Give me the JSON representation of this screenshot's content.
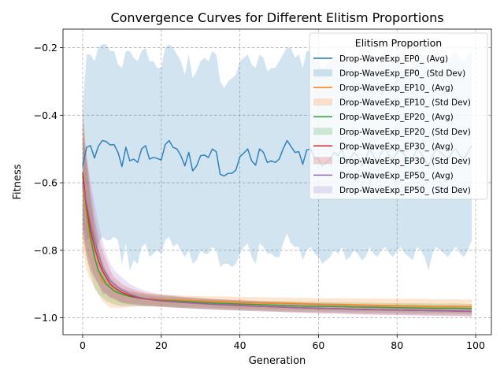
{
  "chart_data": {
    "type": "line",
    "title": "Convergence Curves for Different Elitism Proportions",
    "xlabel": "Generation",
    "ylabel": "Fitness",
    "xlim": [
      -5,
      104
    ],
    "ylim": [
      -1.05,
      -0.145
    ],
    "x_ticks": [
      0,
      20,
      40,
      60,
      80,
      100
    ],
    "y_ticks": [
      -1.0,
      -0.8,
      -0.6,
      -0.4,
      -0.2
    ],
    "grid": true,
    "legend": {
      "title": "Elitism Proportion",
      "placement": "top-right"
    },
    "series": [
      {
        "name": "Drop-WaveExp_EP0_ (Avg)",
        "band_name": "Drop-WaveExp_EP0_ (Std Dev)",
        "color": "#1f77b4",
        "x": [
          0,
          1,
          2,
          3,
          4,
          5,
          6,
          7,
          8,
          9,
          10,
          11,
          12,
          13,
          14,
          15,
          16,
          17,
          18,
          19,
          20,
          21,
          22,
          23,
          24,
          25,
          26,
          27,
          28,
          29,
          30,
          31,
          32,
          33,
          34,
          35,
          36,
          37,
          38,
          39,
          40,
          41,
          42,
          43,
          44,
          45,
          46,
          47,
          48,
          49,
          50,
          51,
          52,
          53,
          54,
          55,
          56,
          57,
          58,
          59,
          60,
          61,
          62,
          63,
          64,
          65,
          66,
          67,
          68,
          69,
          70,
          71,
          72,
          73,
          74,
          75,
          76,
          77,
          78,
          79,
          80,
          81,
          82,
          83,
          84,
          85,
          86,
          87,
          88,
          89,
          90,
          91,
          92,
          93,
          94,
          95,
          96,
          97,
          98,
          99
        ],
        "avg": [
          -0.55,
          -0.495,
          -0.49,
          -0.527,
          -0.492,
          -0.475,
          -0.478,
          -0.488,
          -0.487,
          -0.51,
          -0.552,
          -0.495,
          -0.535,
          -0.53,
          -0.54,
          -0.5,
          -0.49,
          -0.53,
          -0.525,
          -0.528,
          -0.533,
          -0.487,
          -0.475,
          -0.495,
          -0.5,
          -0.52,
          -0.55,
          -0.51,
          -0.565,
          -0.55,
          -0.52,
          -0.518,
          -0.525,
          -0.5,
          -0.508,
          -0.575,
          -0.58,
          -0.572,
          -0.572,
          -0.562,
          -0.523,
          -0.512,
          -0.5,
          -0.535,
          -0.548,
          -0.5,
          -0.51,
          -0.54,
          -0.535,
          -0.54,
          -0.53,
          -0.5,
          -0.475,
          -0.492,
          -0.51,
          -0.508,
          -0.545,
          -0.503,
          -0.5,
          -0.525,
          -0.53,
          -0.55,
          -0.54,
          -0.53,
          -0.51,
          -0.52,
          -0.5,
          -0.54,
          -0.53,
          -0.51,
          -0.52,
          -0.55,
          -0.53,
          -0.5,
          -0.52,
          -0.54,
          -0.51,
          -0.5,
          -0.52,
          -0.53,
          -0.51,
          -0.5,
          -0.52,
          -0.54,
          -0.53,
          -0.5,
          -0.51,
          -0.53,
          -0.55,
          -0.52,
          -0.5,
          -0.51,
          -0.52,
          -0.53,
          -0.51,
          -0.5,
          -0.52,
          -0.53,
          -0.51,
          -0.49
        ],
        "upper": [
          -0.38,
          -0.22,
          -0.22,
          -0.24,
          -0.2,
          -0.19,
          -0.19,
          -0.21,
          -0.21,
          -0.25,
          -0.26,
          -0.21,
          -0.21,
          -0.23,
          -0.24,
          -0.21,
          -0.2,
          -0.24,
          -0.24,
          -0.26,
          -0.26,
          -0.2,
          -0.19,
          -0.2,
          -0.22,
          -0.24,
          -0.28,
          -0.22,
          -0.29,
          -0.27,
          -0.24,
          -0.23,
          -0.24,
          -0.21,
          -0.22,
          -0.3,
          -0.32,
          -0.3,
          -0.29,
          -0.28,
          -0.24,
          -0.23,
          -0.22,
          -0.25,
          -0.26,
          -0.22,
          -0.23,
          -0.27,
          -0.26,
          -0.26,
          -0.24,
          -0.22,
          -0.2,
          -0.2,
          -0.23,
          -0.22,
          -0.26,
          -0.21,
          -0.21,
          -0.24,
          -0.24,
          -0.26,
          -0.25,
          -0.24,
          -0.22,
          -0.23,
          -0.21,
          -0.25,
          -0.24,
          -0.22,
          -0.23,
          -0.27,
          -0.24,
          -0.21,
          -0.23,
          -0.26,
          -0.22,
          -0.21,
          -0.23,
          -0.24,
          -0.22,
          -0.21,
          -0.23,
          -0.26,
          -0.24,
          -0.21,
          -0.22,
          -0.24,
          -0.27,
          -0.23,
          -0.21,
          -0.22,
          -0.23,
          -0.24,
          -0.22,
          -0.21,
          -0.23,
          -0.24,
          -0.22,
          -0.21
        ],
        "lower": [
          -0.72,
          -0.77,
          -0.76,
          -0.81,
          -0.78,
          -0.76,
          -0.77,
          -0.77,
          -0.76,
          -0.77,
          -0.84,
          -0.78,
          -0.86,
          -0.83,
          -0.84,
          -0.79,
          -0.78,
          -0.82,
          -0.81,
          -0.8,
          -0.81,
          -0.77,
          -0.76,
          -0.79,
          -0.78,
          -0.8,
          -0.82,
          -0.8,
          -0.84,
          -0.83,
          -0.8,
          -0.81,
          -0.81,
          -0.79,
          -0.8,
          -0.85,
          -0.84,
          -0.84,
          -0.85,
          -0.84,
          -0.81,
          -0.79,
          -0.78,
          -0.82,
          -0.84,
          -0.78,
          -0.79,
          -0.81,
          -0.81,
          -0.82,
          -0.82,
          -0.78,
          -0.75,
          -0.78,
          -0.79,
          -0.79,
          -0.83,
          -0.8,
          -0.79,
          -0.81,
          -0.82,
          -0.84,
          -0.83,
          -0.82,
          -0.8,
          -0.81,
          -0.79,
          -0.83,
          -0.82,
          -0.8,
          -0.81,
          -0.83,
          -0.82,
          -0.79,
          -0.81,
          -0.82,
          -0.8,
          -0.79,
          -0.81,
          -0.82,
          -0.8,
          -0.79,
          -0.81,
          -0.82,
          -0.83,
          -0.79,
          -0.8,
          -0.82,
          -0.86,
          -0.81,
          -0.79,
          -0.8,
          -0.81,
          -0.82,
          -0.8,
          -0.79,
          -0.81,
          -0.82,
          -0.8,
          -0.77
        ]
      },
      {
        "name": "Drop-WaveExp_EP10_ (Avg)",
        "band_name": "Drop-WaveExp_EP10_ (Std Dev)",
        "color": "#ff7f0e",
        "x": [
          0,
          1,
          2,
          3,
          4,
          5,
          6,
          7,
          8,
          9,
          10,
          12,
          14,
          16,
          18,
          20,
          25,
          30,
          35,
          40,
          45,
          50,
          55,
          60,
          65,
          70,
          75,
          80,
          85,
          90,
          95,
          99
        ],
        "avg": [
          -0.61,
          -0.7,
          -0.77,
          -0.82,
          -0.86,
          -0.89,
          -0.9,
          -0.91,
          -0.92,
          -0.925,
          -0.93,
          -0.935,
          -0.94,
          -0.942,
          -0.944,
          -0.946,
          -0.948,
          -0.95,
          -0.952,
          -0.954,
          -0.956,
          -0.957,
          -0.958,
          -0.96,
          -0.961,
          -0.962,
          -0.963,
          -0.964,
          -0.965,
          -0.966,
          -0.966,
          -0.967
        ],
        "upper": [
          -0.42,
          -0.54,
          -0.65,
          -0.73,
          -0.8,
          -0.84,
          -0.87,
          -0.89,
          -0.9,
          -0.91,
          -0.915,
          -0.92,
          -0.925,
          -0.928,
          -0.93,
          -0.932,
          -0.934,
          -0.936,
          -0.937,
          -0.938,
          -0.939,
          -0.94,
          -0.941,
          -0.942,
          -0.942,
          -0.943,
          -0.943,
          -0.944,
          -0.944,
          -0.945,
          -0.945,
          -0.946
        ],
        "lower": [
          -0.8,
          -0.86,
          -0.89,
          -0.91,
          -0.93,
          -0.95,
          -0.96,
          -0.97,
          -0.97,
          -0.97,
          -0.97,
          -0.968,
          -0.966,
          -0.966,
          -0.966,
          -0.966,
          -0.968,
          -0.969,
          -0.971,
          -0.973,
          -0.975,
          -0.976,
          -0.977,
          -0.978,
          -0.979,
          -0.98,
          -0.981,
          -0.982,
          -0.983,
          -0.984,
          -0.985,
          -0.986
        ]
      },
      {
        "name": "Drop-WaveExp_EP20_ (Avg)",
        "band_name": "Drop-WaveExp_EP20_ (Std Dev)",
        "color": "#2ca02c",
        "x": [
          0,
          1,
          2,
          3,
          4,
          5,
          6,
          7,
          8,
          9,
          10,
          12,
          14,
          16,
          18,
          20,
          25,
          30,
          35,
          40,
          45,
          50,
          55,
          60,
          65,
          70,
          75,
          80,
          85,
          90,
          95,
          99
        ],
        "avg": [
          -0.58,
          -0.68,
          -0.76,
          -0.82,
          -0.86,
          -0.88,
          -0.9,
          -0.91,
          -0.92,
          -0.925,
          -0.93,
          -0.937,
          -0.941,
          -0.944,
          -0.946,
          -0.948,
          -0.951,
          -0.954,
          -0.957,
          -0.959,
          -0.961,
          -0.963,
          -0.965,
          -0.966,
          -0.967,
          -0.968,
          -0.969,
          -0.97,
          -0.971,
          -0.972,
          -0.972,
          -0.973
        ],
        "upper": [
          -0.42,
          -0.55,
          -0.65,
          -0.73,
          -0.79,
          -0.83,
          -0.86,
          -0.88,
          -0.895,
          -0.905,
          -0.912,
          -0.922,
          -0.928,
          -0.932,
          -0.935,
          -0.937,
          -0.94,
          -0.943,
          -0.946,
          -0.948,
          -0.95,
          -0.951,
          -0.952,
          -0.953,
          -0.954,
          -0.955,
          -0.956,
          -0.957,
          -0.957,
          -0.958,
          -0.958,
          -0.959
        ],
        "lower": [
          -0.74,
          -0.82,
          -0.87,
          -0.91,
          -0.93,
          -0.94,
          -0.95,
          -0.955,
          -0.96,
          -0.963,
          -0.965,
          -0.965,
          -0.965,
          -0.966,
          -0.967,
          -0.968,
          -0.971,
          -0.973,
          -0.975,
          -0.977,
          -0.979,
          -0.981,
          -0.982,
          -0.983,
          -0.984,
          -0.985,
          -0.986,
          -0.987,
          -0.988,
          -0.988,
          -0.989,
          -0.99
        ]
      },
      {
        "name": "Drop-WaveExp_EP30_ (Avg)",
        "band_name": "Drop-WaveExp_EP30_ (Std Dev)",
        "color": "#d62728",
        "x": [
          0,
          1,
          2,
          3,
          4,
          5,
          6,
          7,
          8,
          9,
          10,
          12,
          14,
          16,
          18,
          20,
          25,
          30,
          35,
          40,
          45,
          50,
          55,
          60,
          65,
          70,
          75,
          80,
          85,
          90,
          95,
          99
        ],
        "avg": [
          -0.57,
          -0.67,
          -0.74,
          -0.79,
          -0.83,
          -0.86,
          -0.88,
          -0.9,
          -0.91,
          -0.918,
          -0.925,
          -0.934,
          -0.94,
          -0.944,
          -0.947,
          -0.95,
          -0.954,
          -0.958,
          -0.961,
          -0.963,
          -0.966,
          -0.968,
          -0.97,
          -0.972,
          -0.973,
          -0.975,
          -0.976,
          -0.977,
          -0.978,
          -0.979,
          -0.98,
          -0.981
        ],
        "upper": [
          -0.38,
          -0.52,
          -0.62,
          -0.7,
          -0.76,
          -0.8,
          -0.83,
          -0.86,
          -0.88,
          -0.89,
          -0.9,
          -0.912,
          -0.92,
          -0.926,
          -0.93,
          -0.933,
          -0.938,
          -0.942,
          -0.945,
          -0.948,
          -0.951,
          -0.953,
          -0.955,
          -0.957,
          -0.958,
          -0.96,
          -0.961,
          -0.962,
          -0.963,
          -0.964,
          -0.965,
          -0.966
        ],
        "lower": [
          -0.76,
          -0.82,
          -0.86,
          -0.88,
          -0.9,
          -0.92,
          -0.93,
          -0.94,
          -0.945,
          -0.95,
          -0.955,
          -0.958,
          -0.96,
          -0.962,
          -0.964,
          -0.966,
          -0.97,
          -0.974,
          -0.977,
          -0.979,
          -0.981,
          -0.983,
          -0.985,
          -0.987,
          -0.988,
          -0.99,
          -0.991,
          -0.992,
          -0.993,
          -0.994,
          -0.995,
          -0.996
        ]
      },
      {
        "name": "Drop-WaveExp_EP50_ (Avg)",
        "band_name": "Drop-WaveExp_EP50_ (Std Dev)",
        "color": "#9467bd",
        "x": [
          0,
          1,
          2,
          3,
          4,
          5,
          6,
          7,
          8,
          9,
          10,
          12,
          14,
          16,
          18,
          20,
          25,
          30,
          35,
          40,
          45,
          50,
          55,
          60,
          65,
          70,
          75,
          80,
          85,
          90,
          95,
          99
        ],
        "avg": [
          -0.6,
          -0.66,
          -0.72,
          -0.77,
          -0.81,
          -0.85,
          -0.87,
          -0.89,
          -0.9,
          -0.91,
          -0.918,
          -0.93,
          -0.938,
          -0.943,
          -0.946,
          -0.949,
          -0.954,
          -0.958,
          -0.961,
          -0.964,
          -0.966,
          -0.968,
          -0.97,
          -0.972,
          -0.973,
          -0.975,
          -0.976,
          -0.977,
          -0.978,
          -0.979,
          -0.98,
          -0.981
        ],
        "upper": [
          -0.46,
          -0.52,
          -0.6,
          -0.66,
          -0.72,
          -0.77,
          -0.81,
          -0.84,
          -0.86,
          -0.87,
          -0.88,
          -0.9,
          -0.912,
          -0.92,
          -0.926,
          -0.93,
          -0.937,
          -0.942,
          -0.946,
          -0.949,
          -0.952,
          -0.954,
          -0.956,
          -0.958,
          -0.959,
          -0.961,
          -0.962,
          -0.963,
          -0.964,
          -0.965,
          -0.966,
          -0.967
        ],
        "lower": [
          -0.74,
          -0.8,
          -0.84,
          -0.88,
          -0.9,
          -0.93,
          -0.93,
          -0.94,
          -0.94,
          -0.95,
          -0.956,
          -0.96,
          -0.964,
          -0.966,
          -0.966,
          -0.968,
          -0.971,
          -0.974,
          -0.976,
          -0.979,
          -0.98,
          -0.982,
          -0.984,
          -0.986,
          -0.987,
          -0.989,
          -0.99,
          -0.991,
          -0.992,
          -0.993,
          -0.994,
          -0.995
        ]
      }
    ]
  }
}
